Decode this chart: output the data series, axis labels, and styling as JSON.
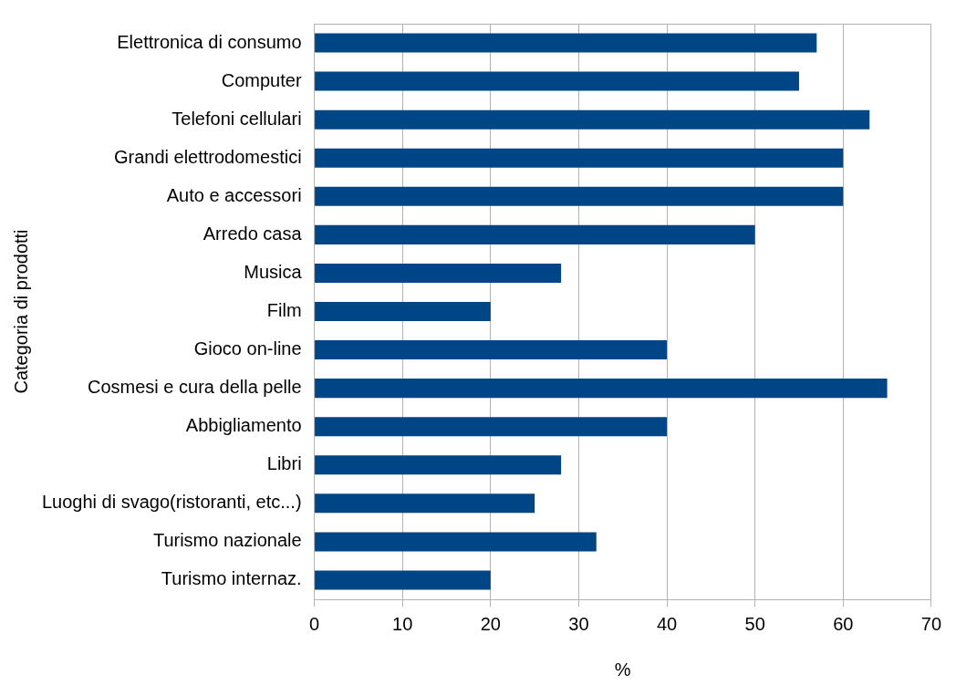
{
  "chart_data": {
    "type": "bar",
    "orientation": "horizontal",
    "xlabel": "%",
    "ylabel": "Categoria di prodotti",
    "categories": [
      "Elettronica di consumo",
      "Computer",
      "Telefoni cellulari",
      "Grandi elettrodomestici",
      "Auto e accessori",
      "Arredo casa",
      "Musica",
      "Film",
      "Gioco on-line",
      "Cosmesi e cura della pelle",
      "Abbigliamento",
      "Libri",
      "Luoghi di svago(ristoranti, etc...)",
      "Turismo nazionale",
      "Turismo internaz."
    ],
    "values": [
      57,
      55,
      63,
      60,
      60,
      50,
      28,
      20,
      40,
      65,
      40,
      28,
      25,
      32,
      20
    ],
    "color": "#004586",
    "xlim": [
      0,
      70
    ],
    "xticks": [
      0,
      10,
      20,
      30,
      40,
      50,
      60,
      70
    ],
    "grid": "x",
    "legend": false
  }
}
